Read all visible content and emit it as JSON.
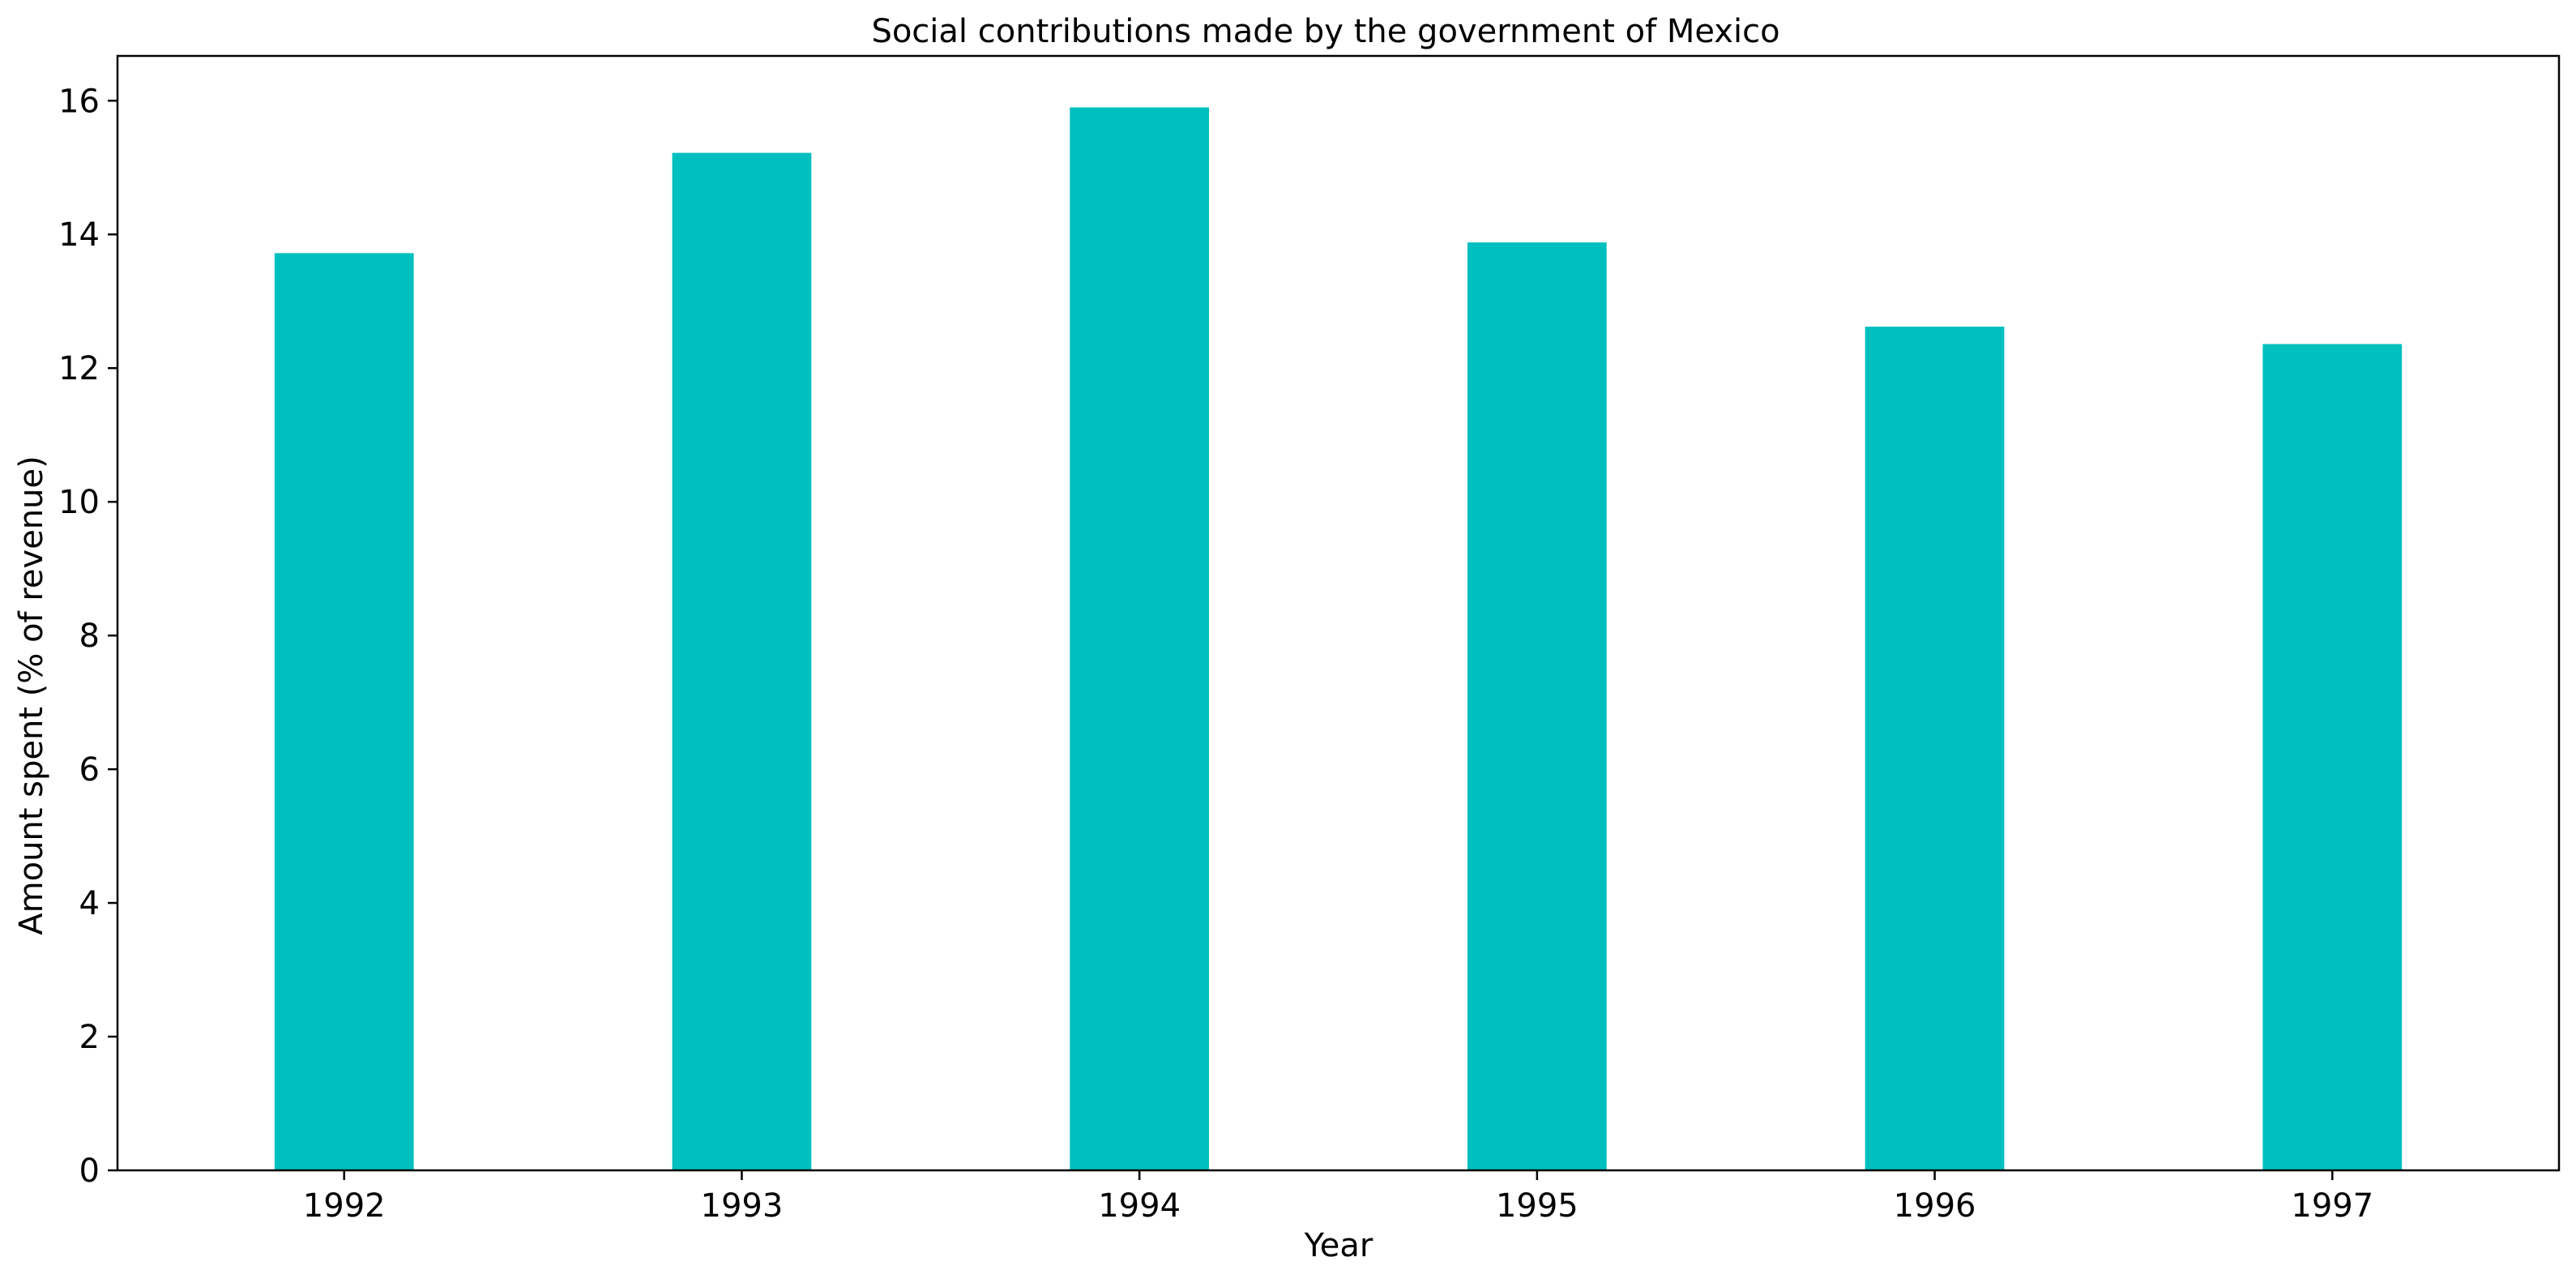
{
  "chart_data": {
    "type": "bar",
    "title": "Social contributions made by the government of Mexico",
    "xlabel": "Year",
    "ylabel": "Amount spent (% of revenue)",
    "categories": [
      "1992",
      "1993",
      "1994",
      "1995",
      "1996",
      "1997"
    ],
    "values": [
      13.72,
      15.22,
      15.9,
      13.88,
      12.62,
      12.36
    ],
    "ylim": [
      0,
      16.67
    ],
    "yticks": [
      "0",
      "2",
      "4",
      "6",
      "8",
      "10",
      "12",
      "14",
      "16"
    ],
    "grid": false,
    "legend": "none",
    "bar_color": "#00bfbf"
  }
}
